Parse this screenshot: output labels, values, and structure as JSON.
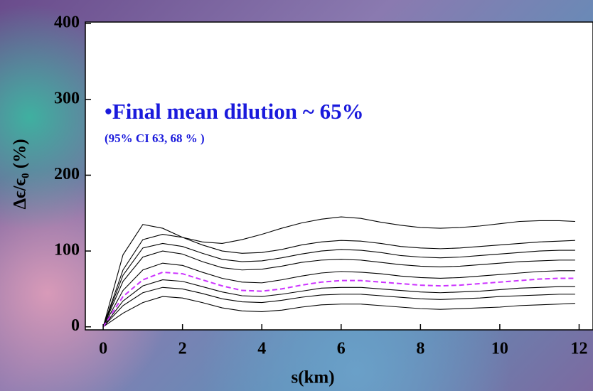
{
  "chart_data": {
    "type": "line",
    "x_label": "s(km)",
    "y_label": "Δϵ/ϵ₀ (%)",
    "annotations": [
      "•Final mean dilution ~ 65%",
      "(95% CI 63, 68 % )"
    ],
    "annotation_color": "#1a1adc",
    "x": [
      0,
      0.5,
      1,
      1.5,
      2,
      2.5,
      3,
      3.5,
      4,
      4.5,
      5,
      5.5,
      6,
      6.5,
      7,
      7.5,
      8,
      8.5,
      9,
      9.5,
      10,
      10.5,
      11,
      11.5,
      11.9
    ],
    "series": [
      {
        "color": "#000000",
        "dashed": false,
        "values": [
          0,
          95,
          135,
          130,
          118,
          112,
          110,
          115,
          122,
          130,
          137,
          142,
          145,
          143,
          138,
          134,
          131,
          130,
          131,
          133,
          136,
          139,
          140,
          140,
          139
        ]
      },
      {
        "color": "#000000",
        "dashed": false,
        "values": [
          0,
          75,
          115,
          122,
          118,
          108,
          100,
          97,
          98,
          102,
          108,
          112,
          114,
          113,
          110,
          106,
          104,
          103,
          104,
          106,
          108,
          110,
          112,
          113,
          114
        ]
      },
      {
        "color": "#000000",
        "dashed": false,
        "values": [
          0,
          68,
          104,
          110,
          106,
          97,
          89,
          86,
          87,
          91,
          96,
          100,
          102,
          101,
          98,
          94,
          92,
          91,
          92,
          94,
          96,
          98,
          100,
          101,
          101
        ]
      },
      {
        "color": "#000000",
        "dashed": false,
        "values": [
          0,
          60,
          92,
          100,
          96,
          86,
          78,
          75,
          76,
          80,
          85,
          88,
          89,
          88,
          85,
          82,
          80,
          79,
          80,
          82,
          84,
          86,
          87,
          88,
          88
        ]
      },
      {
        "color": "#000000",
        "dashed": false,
        "values": [
          0,
          48,
          75,
          84,
          81,
          72,
          64,
          59,
          58,
          62,
          67,
          71,
          73,
          72,
          70,
          67,
          65,
          64,
          65,
          67,
          69,
          71,
          73,
          74,
          74
        ]
      },
      {
        "color": "#000000",
        "dashed": false,
        "values": [
          0,
          34,
          54,
          62,
          60,
          53,
          46,
          41,
          40,
          43,
          47,
          51,
          52,
          52,
          50,
          48,
          46,
          45,
          46,
          47,
          49,
          51,
          52,
          53,
          53
        ]
      },
      {
        "color": "#000000",
        "dashed": false,
        "values": [
          0,
          28,
          45,
          52,
          50,
          44,
          37,
          33,
          32,
          35,
          39,
          42,
          43,
          43,
          41,
          39,
          37,
          36,
          37,
          38,
          40,
          41,
          42,
          43,
          43
        ]
      },
      {
        "color": "#000000",
        "dashed": false,
        "values": [
          0,
          18,
          32,
          40,
          38,
          32,
          25,
          21,
          20,
          22,
          26,
          29,
          30,
          30,
          28,
          26,
          24,
          23,
          24,
          25,
          26,
          28,
          29,
          30,
          31
        ]
      },
      {
        "color": "#cc33ff",
        "dashed": true,
        "values": [
          0,
          40,
          62,
          72,
          70,
          62,
          54,
          48,
          47,
          50,
          55,
          59,
          61,
          61,
          59,
          57,
          55,
          54,
          55,
          57,
          59,
          61,
          63,
          64,
          64
        ]
      }
    ],
    "xlim": [
      -0.45,
      12.35
    ],
    "ylim": [
      -4,
      402
    ],
    "xticks": [
      0,
      2,
      4,
      6,
      8,
      10,
      12
    ],
    "yticks": [
      0,
      100,
      200,
      300,
      400
    ],
    "grid": false
  }
}
